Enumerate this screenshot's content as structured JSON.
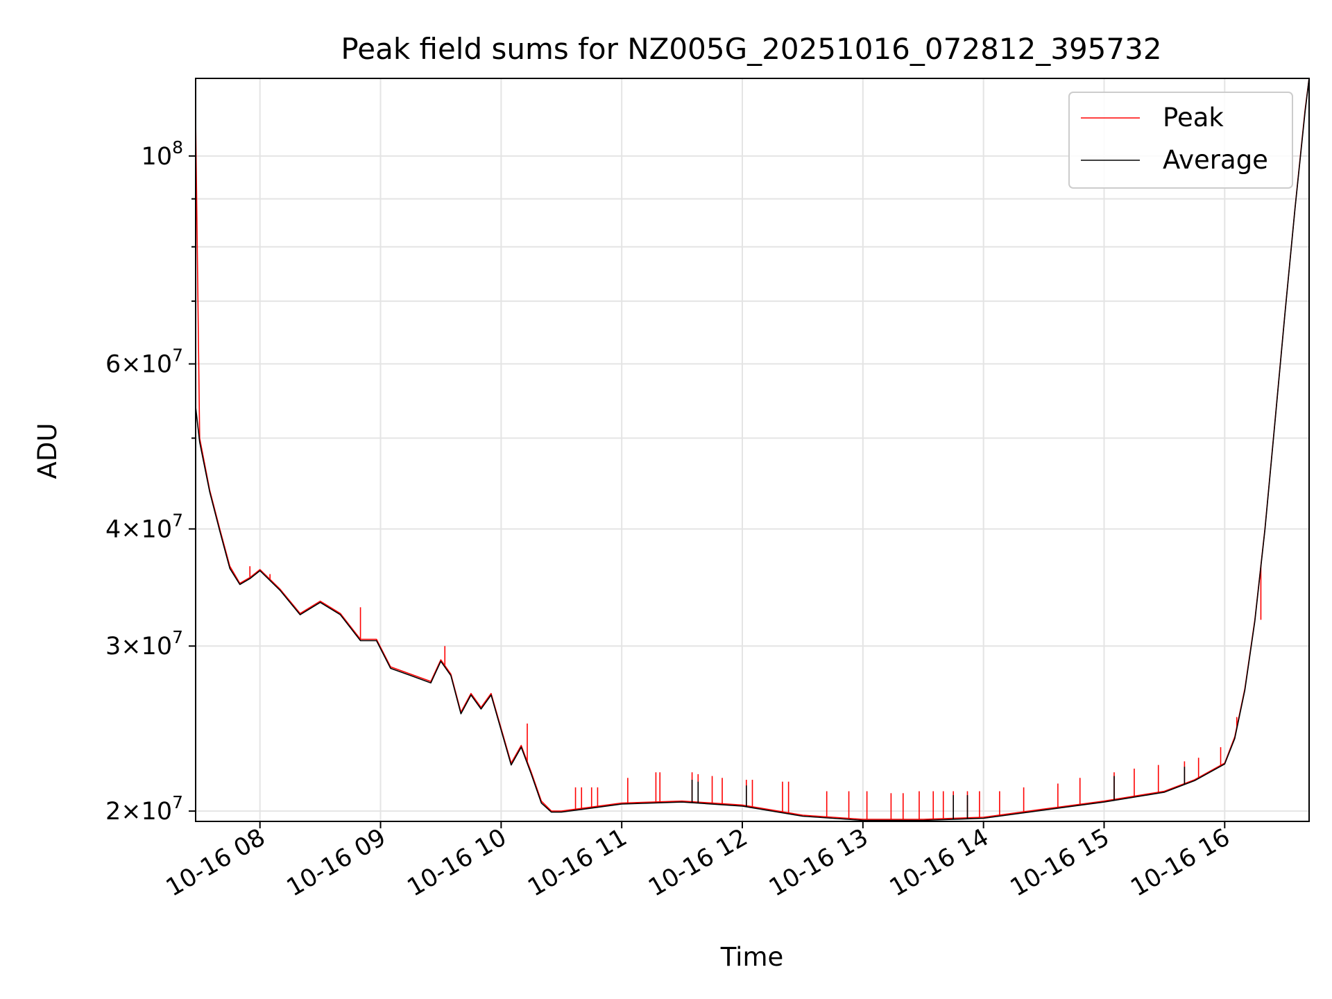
{
  "chart_data": {
    "type": "line",
    "title": "Peak field sums for NZ005G_20251016_072812_395732",
    "xlabel": "Time",
    "ylabel": "ADU",
    "x_range": [
      "2025-10-16T07:28",
      "2025-10-16T16:42"
    ],
    "ylim": [
      19500000,
      121000000
    ],
    "yscale": "log",
    "grid": true,
    "legend": "top-right",
    "x_ticks": [
      "10-16 08",
      "10-16 09",
      "10-16 10",
      "10-16 11",
      "10-16 12",
      "10-16 13",
      "10-16 14",
      "10-16 15",
      "10-16 16"
    ],
    "x_tick_times": [
      "2025-10-16T08:00",
      "2025-10-16T09:00",
      "2025-10-16T10:00",
      "2025-10-16T11:00",
      "2025-10-16T12:00",
      "2025-10-16T13:00",
      "2025-10-16T14:00",
      "2025-10-16T15:00",
      "2025-10-16T16:00"
    ],
    "y_ticks": [
      {
        "value": 100000000,
        "mant": "",
        "exp": "8"
      },
      {
        "value": 60000000,
        "mant": "6",
        "exp": "7"
      },
      {
        "value": 40000000,
        "mant": "4",
        "exp": "7"
      },
      {
        "value": 30000000,
        "mant": "3",
        "exp": "7"
      },
      {
        "value": 20000000,
        "mant": "2",
        "exp": "7"
      }
    ],
    "y_minor_ticks": [
      90000000,
      80000000,
      70000000,
      50000000
    ],
    "series": [
      {
        "name": "Peak",
        "color": "#ff0000",
        "x": [
          "2025-10-16T07:28",
          "2025-10-16T07:30",
          "2025-10-16T07:35",
          "2025-10-16T07:40",
          "2025-10-16T07:45",
          "2025-10-16T07:50",
          "2025-10-16T07:55",
          "2025-10-16T08:00",
          "2025-10-16T08:10",
          "2025-10-16T08:20",
          "2025-10-16T08:30",
          "2025-10-16T08:40",
          "2025-10-16T08:50",
          "2025-10-16T08:58",
          "2025-10-16T09:05",
          "2025-10-16T09:15",
          "2025-10-16T09:25",
          "2025-10-16T09:30",
          "2025-10-16T09:35",
          "2025-10-16T09:40",
          "2025-10-16T09:45",
          "2025-10-16T09:50",
          "2025-10-16T09:55",
          "2025-10-16T10:00",
          "2025-10-16T10:05",
          "2025-10-16T10:10",
          "2025-10-16T10:15",
          "2025-10-16T10:20",
          "2025-10-16T10:25",
          "2025-10-16T10:30",
          "2025-10-16T10:45",
          "2025-10-16T11:00",
          "2025-10-16T11:30",
          "2025-10-16T12:00",
          "2025-10-16T12:30",
          "2025-10-16T13:00",
          "2025-10-16T13:30",
          "2025-10-16T14:00",
          "2025-10-16T14:30",
          "2025-10-16T15:00",
          "2025-10-16T15:30",
          "2025-10-16T15:45",
          "2025-10-16T16:00",
          "2025-10-16T16:05",
          "2025-10-16T16:10",
          "2025-10-16T16:15",
          "2025-10-16T16:20",
          "2025-10-16T16:25",
          "2025-10-16T16:30",
          "2025-10-16T16:35",
          "2025-10-16T16:40",
          "2025-10-16T16:42"
        ],
        "values": [
          110000000,
          50000000,
          44000000,
          40000000,
          36500000,
          35000000,
          35500000,
          36200000,
          34500000,
          32500000,
          33500000,
          32500000,
          30500000,
          30500000,
          28500000,
          28000000,
          27500000,
          29000000,
          28000000,
          25500000,
          26700000,
          25800000,
          26700000,
          24500000,
          22500000,
          23500000,
          22000000,
          20500000,
          20000000,
          20000000,
          20200000,
          20400000,
          20500000,
          20300000,
          19800000,
          19600000,
          19600000,
          19700000,
          20100000,
          20500000,
          21000000,
          21600000,
          22500000,
          24000000,
          27000000,
          32000000,
          40000000,
          52000000,
          68000000,
          88000000,
          112000000,
          121000000
        ],
        "spikes": {
          "x": [
            "2025-10-16T07:55",
            "2025-10-16T08:05",
            "2025-10-16T08:50",
            "2025-10-16T09:32",
            "2025-10-16T10:13",
            "2025-10-16T10:37",
            "2025-10-16T10:40",
            "2025-10-16T10:45",
            "2025-10-16T10:48",
            "2025-10-16T11:03",
            "2025-10-16T11:17",
            "2025-10-16T11:19",
            "2025-10-16T11:35",
            "2025-10-16T11:38",
            "2025-10-16T11:45",
            "2025-10-16T11:50",
            "2025-10-16T12:02",
            "2025-10-16T12:05",
            "2025-10-16T12:20",
            "2025-10-16T12:23",
            "2025-10-16T12:42",
            "2025-10-16T12:53",
            "2025-10-16T13:02",
            "2025-10-16T13:14",
            "2025-10-16T13:20",
            "2025-10-16T13:28",
            "2025-10-16T13:35",
            "2025-10-16T13:40",
            "2025-10-16T13:45",
            "2025-10-16T13:52",
            "2025-10-16T13:58",
            "2025-10-16T14:08",
            "2025-10-16T14:20",
            "2025-10-16T14:37",
            "2025-10-16T14:48",
            "2025-10-16T15:05",
            "2025-10-16T15:15",
            "2025-10-16T15:27",
            "2025-10-16T15:40",
            "2025-10-16T15:47",
            "2025-10-16T15:58",
            "2025-10-16T16:06",
            "2025-10-16T16:18"
          ],
          "values": [
            36500000,
            35800000,
            33000000,
            30000000,
            24800000,
            21200000,
            21200000,
            21200000,
            21200000,
            21700000,
            22000000,
            22000000,
            22000000,
            21900000,
            21800000,
            21700000,
            21600000,
            21600000,
            21500000,
            21500000,
            21000000,
            21000000,
            21000000,
            20900000,
            20900000,
            21000000,
            21000000,
            21000000,
            21000000,
            21000000,
            21000000,
            21000000,
            21200000,
            21400000,
            21700000,
            22000000,
            22200000,
            22400000,
            22600000,
            22800000,
            23400000,
            25200000,
            32000000
          ]
        }
      },
      {
        "name": "Average",
        "color": "#000000",
        "x": [
          "2025-10-16T07:28",
          "2025-10-16T07:30",
          "2025-10-16T07:35",
          "2025-10-16T07:40",
          "2025-10-16T07:45",
          "2025-10-16T07:50",
          "2025-10-16T07:55",
          "2025-10-16T08:00",
          "2025-10-16T08:10",
          "2025-10-16T08:20",
          "2025-10-16T08:30",
          "2025-10-16T08:40",
          "2025-10-16T08:50",
          "2025-10-16T08:58",
          "2025-10-16T09:05",
          "2025-10-16T09:15",
          "2025-10-16T09:25",
          "2025-10-16T09:30",
          "2025-10-16T09:35",
          "2025-10-16T09:40",
          "2025-10-16T09:45",
          "2025-10-16T09:50",
          "2025-10-16T09:55",
          "2025-10-16T10:00",
          "2025-10-16T10:05",
          "2025-10-16T10:10",
          "2025-10-16T10:15",
          "2025-10-16T10:20",
          "2025-10-16T10:25",
          "2025-10-16T10:30",
          "2025-10-16T10:45",
          "2025-10-16T11:00",
          "2025-10-16T11:30",
          "2025-10-16T12:00",
          "2025-10-16T12:30",
          "2025-10-16T13:00",
          "2025-10-16T13:30",
          "2025-10-16T14:00",
          "2025-10-16T14:30",
          "2025-10-16T15:00",
          "2025-10-16T15:30",
          "2025-10-16T15:45",
          "2025-10-16T16:00",
          "2025-10-16T16:05",
          "2025-10-16T16:10",
          "2025-10-16T16:15",
          "2025-10-16T16:20",
          "2025-10-16T16:25",
          "2025-10-16T16:30",
          "2025-10-16T16:35",
          "2025-10-16T16:40",
          "2025-10-16T16:42"
        ],
        "values": [
          54000000,
          49500000,
          43800000,
          39800000,
          36300000,
          34900000,
          35400000,
          36100000,
          34400000,
          32400000,
          33400000,
          32400000,
          30400000,
          30400000,
          28400000,
          27900000,
          27400000,
          28900000,
          27900000,
          25400000,
          26600000,
          25700000,
          26600000,
          24400000,
          22400000,
          23400000,
          21900000,
          20400000,
          19950000,
          19950000,
          20150000,
          20350000,
          20450000,
          20250000,
          19750000,
          19550000,
          19550000,
          19650000,
          20050000,
          20450000,
          20950000,
          21550000,
          22450000,
          23900000,
          26900000,
          31900000,
          39900000,
          51900000,
          67900000,
          87900000,
          111500000,
          121000000
        ],
        "spikes": {
          "x": [
            "2025-10-16T11:35",
            "2025-10-16T11:38",
            "2025-10-16T12:02",
            "2025-10-16T13:45",
            "2025-10-16T13:52",
            "2025-10-16T15:05",
            "2025-10-16T15:40"
          ],
          "values": [
            21600000,
            21500000,
            21300000,
            20800000,
            20800000,
            21800000,
            22300000
          ]
        }
      }
    ]
  }
}
